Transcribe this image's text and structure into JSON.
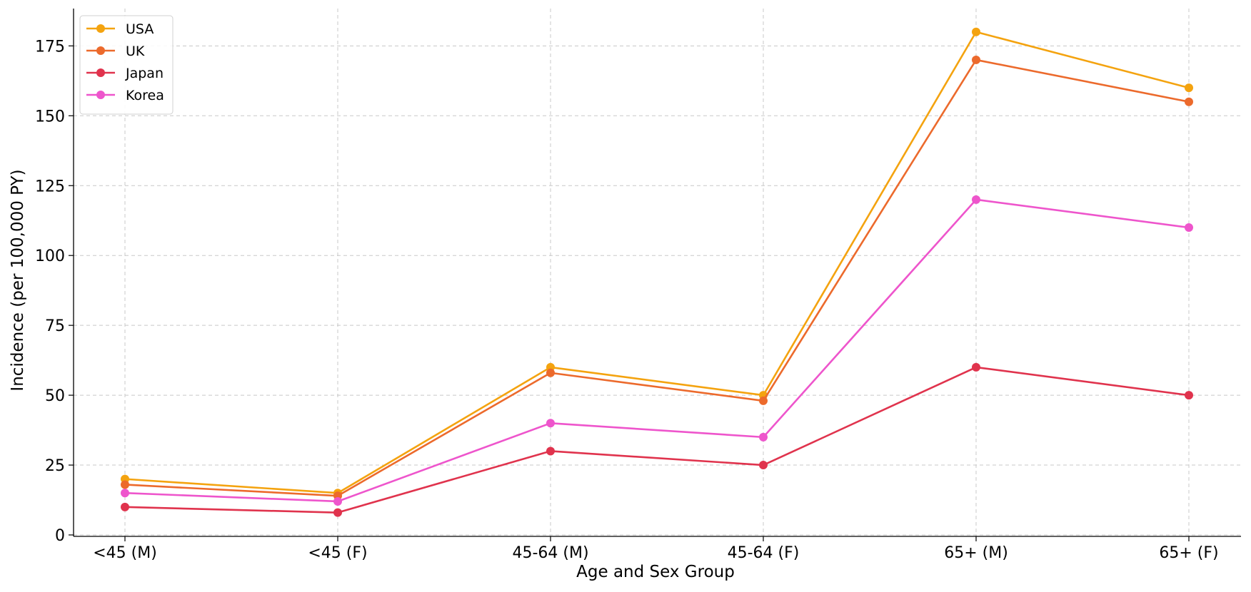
{
  "chart_data": {
    "type": "line",
    "categories": [
      "<45 (M)",
      "<45 (F)",
      "45-64 (M)",
      "45-64 (F)",
      "65+ (M)",
      "65+ (F)"
    ],
    "series": [
      {
        "name": "USA",
        "color": "#f4a30f",
        "values": [
          20,
          15,
          60,
          50,
          180,
          160
        ]
      },
      {
        "name": "UK",
        "color": "#ec6a2c",
        "values": [
          18,
          14,
          58,
          48,
          170,
          155
        ]
      },
      {
        "name": "Japan",
        "color": "#e0334d",
        "values": [
          10,
          8,
          30,
          25,
          60,
          50
        ]
      },
      {
        "name": "Korea",
        "color": "#ee55cc",
        "values": [
          15,
          12,
          40,
          35,
          120,
          110
        ]
      }
    ],
    "xlabel": "Age and Sex Group",
    "ylabel": "Incidence (per 100,000 PY)",
    "ylim": [
      0,
      190
    ],
    "yticks": [
      0,
      25,
      50,
      75,
      100,
      125,
      150,
      175
    ],
    "grid": true,
    "legend": "top-left"
  }
}
